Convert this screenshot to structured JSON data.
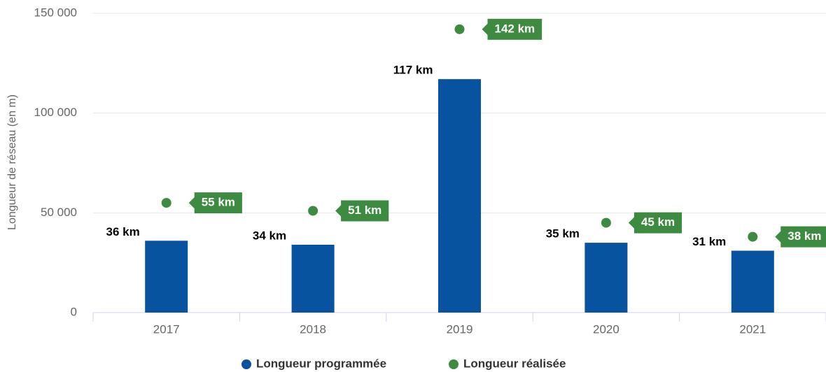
{
  "chart_data": {
    "type": "bar",
    "y_axis_title": "Longueur de réseau (en m)",
    "categories": [
      "2017",
      "2018",
      "2019",
      "2020",
      "2021"
    ],
    "series": [
      {
        "name": "Longueur programmée",
        "type": "bar",
        "color": "#07539f",
        "values": [
          36000,
          34000,
          117000,
          35000,
          31000
        ],
        "value_labels": [
          "36 km",
          "34 km",
          "117 km",
          "35 km",
          "31 km"
        ]
      },
      {
        "name": "Longueur réalisée",
        "type": "scatter",
        "color": "#3d8a41",
        "values": [
          55000,
          51000,
          142000,
          45000,
          38000
        ],
        "value_labels": [
          "55 km",
          "51 km",
          "142 km",
          "45 km",
          "38 km"
        ]
      }
    ],
    "ylim": [
      0,
      150000
    ],
    "yticks": [
      {
        "value": 0,
        "label": "0"
      },
      {
        "value": 50000,
        "label": "50 000"
      },
      {
        "value": 100000,
        "label": "100 000"
      },
      {
        "value": 150000,
        "label": "150 000"
      }
    ],
    "grid": true,
    "legend": "bottom"
  }
}
